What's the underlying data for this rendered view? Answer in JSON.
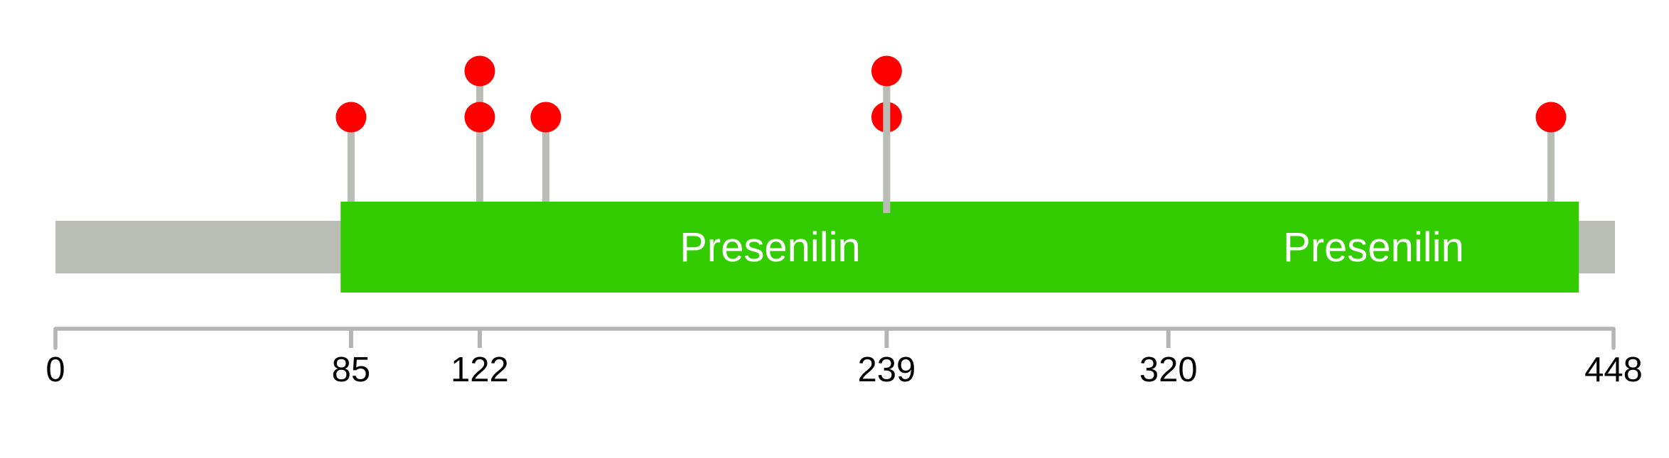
{
  "chart_data": {
    "type": "lollipop",
    "description": "Protein domain lollipop diagram with mutation markers",
    "protein_length": 448,
    "axis_range": [
      0,
      448
    ],
    "axis_ticks": [
      0,
      85,
      122,
      239,
      320,
      448
    ],
    "axis_tick_labels": [
      "0",
      "85",
      "122",
      "239",
      "320",
      "448"
    ],
    "backbone": {
      "start": 0,
      "end": 448
    },
    "domains": [
      {
        "label": "Presenilin",
        "start": 82,
        "end": 329
      },
      {
        "label": "Presenilin",
        "start": 320,
        "end": 438
      }
    ],
    "lollipops": [
      {
        "position": 85,
        "count": 1
      },
      {
        "position": 122,
        "count": 2
      },
      {
        "position": 141,
        "count": 1
      },
      {
        "position": 239,
        "count": 2,
        "stem_in_front_of_lower": true
      },
      {
        "position": 430,
        "count": 1
      }
    ],
    "legend": null,
    "grid": false,
    "colors": {
      "background": "#ffffff",
      "backbone": "#babdb6",
      "stem": "#babdb6",
      "domain": "#33cc00",
      "domain_label": "#ffffff",
      "lollipop": "#ff0000",
      "axis": "#b4b4b4",
      "tick_label": "#000000"
    }
  }
}
